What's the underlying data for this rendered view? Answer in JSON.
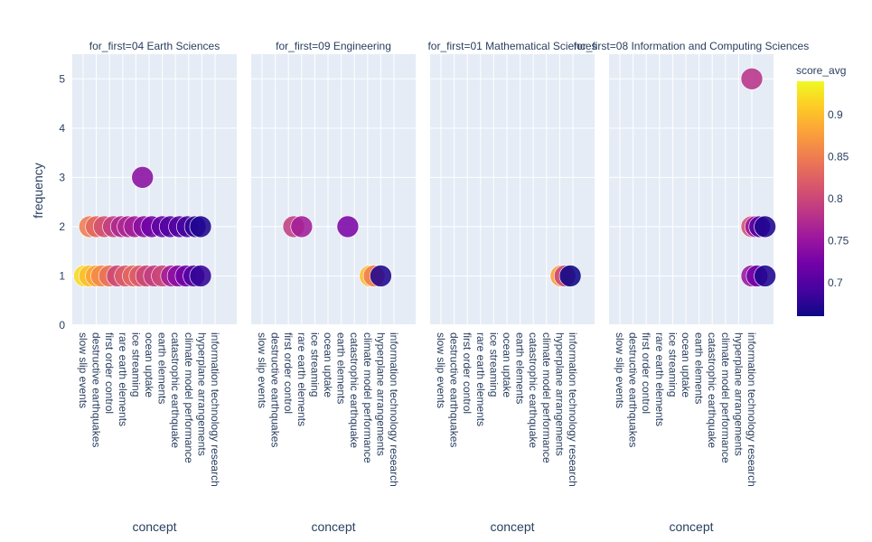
{
  "chart_data": {
    "type": "scatter",
    "layout": "faceted-columns",
    "facet_label_template": "for_first={facet}",
    "xlabel": "concept",
    "ylabel": "frequency",
    "ylim": [
      0,
      5.5
    ],
    "yticks": [
      0,
      1,
      2,
      3,
      4,
      5
    ],
    "categories": [
      "slow slip events",
      "destructive earthquakes",
      "first order control",
      "rare earth elements",
      "ice streaming",
      "ocean uptake",
      "earth elements",
      "catastrophic earthquake",
      "climate model performance",
      "hyperplane arrangements",
      "information technology research"
    ],
    "grid": true,
    "color_scale": {
      "title": "score_avg",
      "min": 0.66,
      "max": 0.94,
      "ticks": [
        0.7,
        0.75,
        0.8,
        0.85,
        0.9
      ],
      "tick_labels": [
        "0.7",
        "0.75",
        "0.8",
        "0.85",
        "0.9"
      ],
      "stops": [
        "#0d0887",
        "#46039f",
        "#7201a8",
        "#9c179e",
        "#bd3786",
        "#d8576b",
        "#ed7953",
        "#fb9f3a",
        "#fdca26",
        "#f0f921"
      ]
    },
    "facets": [
      {
        "title": "for_first=04 Earth Sciences",
        "points": [
          {
            "x": 0.1,
            "y": 1,
            "score": 0.92
          },
          {
            "x": 0.5,
            "y": 1,
            "score": 0.9
          },
          {
            "x": 1.0,
            "y": 1,
            "score": 0.88
          },
          {
            "x": 1.4,
            "y": 1,
            "score": 0.86
          },
          {
            "x": 2.0,
            "y": 1,
            "score": 0.84
          },
          {
            "x": 2.6,
            "y": 1,
            "score": 0.8
          },
          {
            "x": 3.2,
            "y": 1,
            "score": 0.82
          },
          {
            "x": 3.8,
            "y": 1,
            "score": 0.83
          },
          {
            "x": 4.3,
            "y": 1,
            "score": 0.82
          },
          {
            "x": 4.8,
            "y": 1,
            "score": 0.8
          },
          {
            "x": 5.4,
            "y": 1,
            "score": 0.79
          },
          {
            "x": 6.0,
            "y": 1,
            "score": 0.8
          },
          {
            "x": 6.7,
            "y": 1,
            "score": 0.76
          },
          {
            "x": 7.2,
            "y": 1,
            "score": 0.74
          },
          {
            "x": 7.8,
            "y": 1,
            "score": 0.72
          },
          {
            "x": 8.4,
            "y": 1,
            "score": 0.7
          },
          {
            "x": 8.9,
            "y": 1,
            "score": 0.68
          },
          {
            "x": 0.5,
            "y": 2,
            "score": 0.85
          },
          {
            "x": 1.0,
            "y": 2,
            "score": 0.83
          },
          {
            "x": 1.6,
            "y": 2,
            "score": 0.81
          },
          {
            "x": 2.3,
            "y": 2,
            "score": 0.79
          },
          {
            "x": 2.9,
            "y": 2,
            "score": 0.77
          },
          {
            "x": 3.4,
            "y": 2,
            "score": 0.77
          },
          {
            "x": 3.9,
            "y": 2,
            "score": 0.76
          },
          {
            "x": 4.6,
            "y": 2,
            "score": 0.74
          },
          {
            "x": 5.2,
            "y": 2,
            "score": 0.72
          },
          {
            "x": 6.0,
            "y": 2,
            "score": 0.71
          },
          {
            "x": 6.6,
            "y": 2,
            "score": 0.7
          },
          {
            "x": 7.3,
            "y": 2,
            "score": 0.7
          },
          {
            "x": 7.9,
            "y": 2,
            "score": 0.69
          },
          {
            "x": 8.5,
            "y": 2,
            "score": 0.68
          },
          {
            "x": 8.9,
            "y": 2,
            "score": 0.67
          },
          {
            "x": 4.5,
            "y": 3,
            "score": 0.74
          }
        ]
      },
      {
        "title": "for_first=09 Engineering",
        "points": [
          {
            "x": 2.4,
            "y": 2,
            "score": 0.79
          },
          {
            "x": 3.0,
            "y": 2,
            "score": 0.76
          },
          {
            "x": 6.5,
            "y": 2,
            "score": 0.73
          },
          {
            "x": 8.2,
            "y": 1,
            "score": 0.9
          },
          {
            "x": 8.5,
            "y": 1,
            "score": 0.85
          },
          {
            "x": 9.0,
            "y": 1,
            "score": 0.67
          }
        ]
      },
      {
        "title": "for_first=01 Mathematical Sciences",
        "points": [
          {
            "x": 9.1,
            "y": 1,
            "score": 0.88
          },
          {
            "x": 9.4,
            "y": 1,
            "score": 0.8
          },
          {
            "x": 9.8,
            "y": 1,
            "score": 0.66
          }
        ]
      },
      {
        "title": "for_first=08 Information and Computing Sciences",
        "points": [
          {
            "x": 10.0,
            "y": 5,
            "score": 0.78
          },
          {
            "x": 10.0,
            "y": 2,
            "score": 0.81
          },
          {
            "x": 10.3,
            "y": 2,
            "score": 0.75
          },
          {
            "x": 10.6,
            "y": 2,
            "score": 0.7
          },
          {
            "x": 11.0,
            "y": 2,
            "score": 0.67
          },
          {
            "x": 10.0,
            "y": 1,
            "score": 0.75
          },
          {
            "x": 10.4,
            "y": 1,
            "score": 0.72
          },
          {
            "x": 11.0,
            "y": 1,
            "score": 0.67
          }
        ]
      }
    ]
  }
}
